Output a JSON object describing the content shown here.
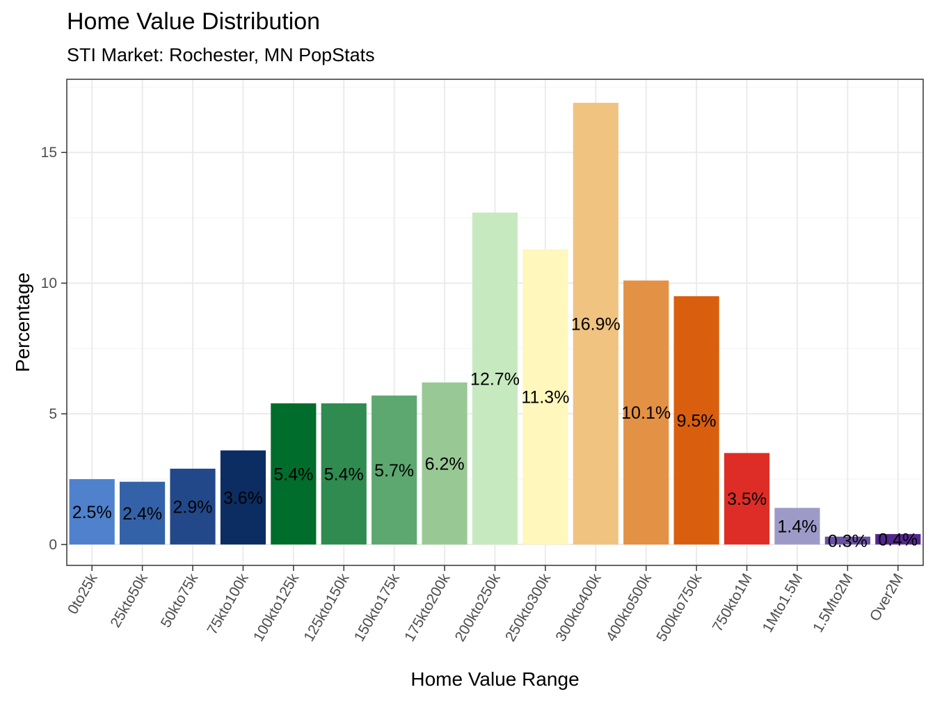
{
  "chart_data": {
    "type": "bar",
    "title": "Home Value Distribution",
    "subtitle": "STI Market: Rochester, MN PopStats",
    "xlabel": "Home Value Range",
    "ylabel": "Percentage",
    "ylim": [
      -0.8,
      17.8
    ],
    "yticks": [
      0,
      5,
      10,
      15
    ],
    "grid": true,
    "legend": "none",
    "categories": [
      "0to25k",
      "25kto50k",
      "50kto75k",
      "75kto100k",
      "100kto125k",
      "125kto150k",
      "150kto175k",
      "175kto200k",
      "200kto250k",
      "250kto300k",
      "300kto400k",
      "400kto500k",
      "500kto750k",
      "750kto1M",
      "1Mto1.5M",
      "1.5Mto2M",
      "Over2M"
    ],
    "values": [
      2.5,
      2.4,
      2.9,
      3.6,
      5.4,
      5.4,
      5.7,
      6.2,
      12.7,
      11.3,
      16.9,
      10.1,
      9.5,
      3.5,
      1.4,
      0.3,
      0.4
    ],
    "labels": [
      "2.5%",
      "2.4%",
      "2.9%",
      "3.6%",
      "5.4%",
      "5.4%",
      "5.7%",
      "6.2%",
      "12.7%",
      "11.3%",
      "16.9%",
      "10.1%",
      "9.5%",
      "3.5%",
      "1.4%",
      "0.3%",
      "0.4%"
    ],
    "colors": [
      "#4F81CC",
      "#3462A8",
      "#22488A",
      "#0C2D62",
      "#006D2C",
      "#2F8B50",
      "#5DA870",
      "#98C995",
      "#C7E9C0",
      "#FFF7BC",
      "#F0C381",
      "#E39144",
      "#D95F0E",
      "#DE2D26",
      "#9E9AC8",
      "#6A51A3",
      "#54278F"
    ]
  }
}
